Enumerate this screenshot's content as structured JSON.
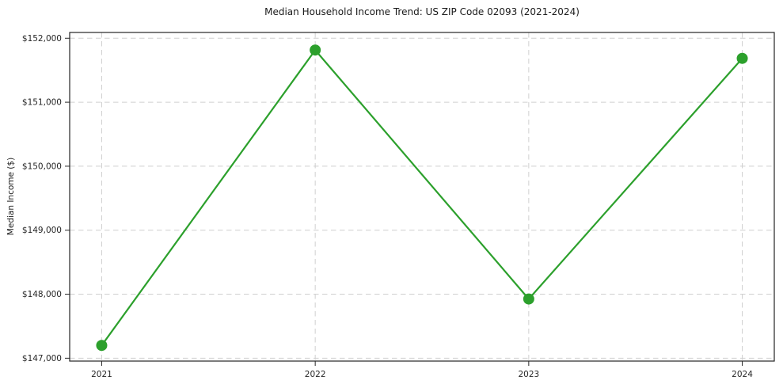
{
  "chart_data": {
    "type": "line",
    "title": "Median Household Income Trend: US ZIP Code 02093 (2021-2024)",
    "xlabel": "",
    "ylabel": "Median Income ($)",
    "x": [
      2021,
      2022,
      2023,
      2024
    ],
    "xtick_labels": [
      "2021",
      "2022",
      "2023",
      "2024"
    ],
    "series": [
      {
        "name": "Median Household Income",
        "values": [
          147200,
          151815,
          147925,
          151685
        ]
      }
    ],
    "yticks": [
      147000,
      148000,
      149000,
      150000,
      151000,
      152000
    ],
    "ytick_labels": [
      "$147,000",
      "$148,000",
      "$149,000",
      "$150,000",
      "$151,000",
      "$152,000"
    ],
    "xlim": [
      2020.85,
      2024.15
    ],
    "ylim": [
      146955,
      152090
    ],
    "grid": true,
    "legend": "none",
    "colors": {
      "line": "#2ca02c",
      "marker": "#2ca02c",
      "gridline": "#cfcfcf",
      "axis": "#262626",
      "background": "#ffffff"
    }
  }
}
